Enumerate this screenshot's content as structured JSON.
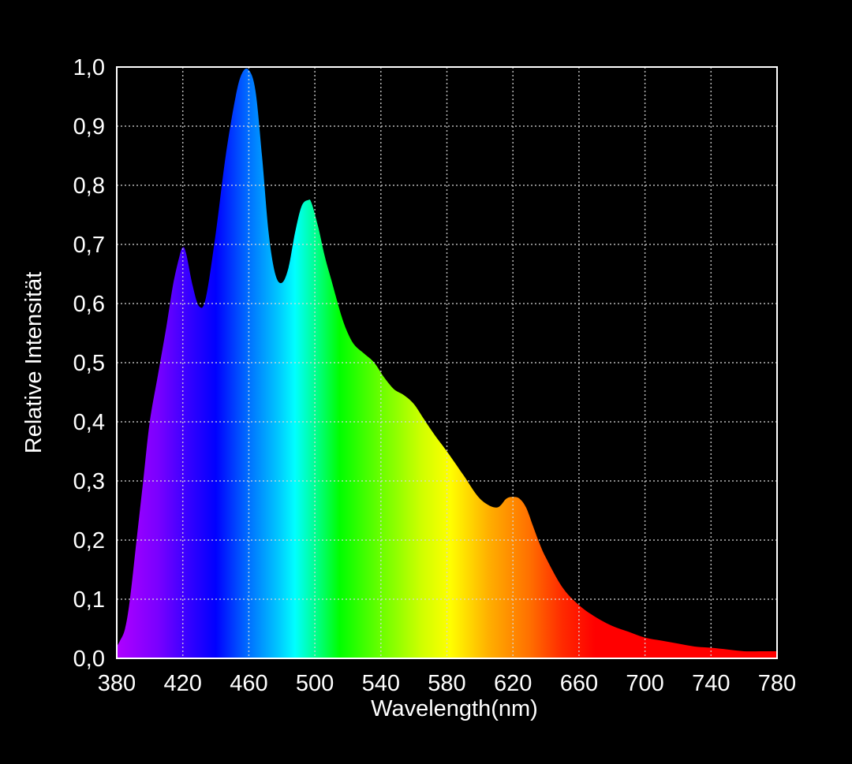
{
  "chart_data": {
    "type": "area",
    "xlabel": "Wavelength(nm)",
    "ylabel": "Relative Intensität",
    "xlim": [
      380,
      780
    ],
    "ylim": [
      0,
      1
    ],
    "xticks": [
      "380",
      "420",
      "460",
      "500",
      "540",
      "580",
      "620",
      "660",
      "700",
      "740",
      "780"
    ],
    "yticks": [
      "0,0",
      "0,1",
      "0,2",
      "0,3",
      "0,4",
      "0,5",
      "0,6",
      "0,7",
      "0,8",
      "0,9",
      "1,0"
    ],
    "grid": true,
    "fill": "visible spectrum gradient",
    "series": [
      {
        "x": [
          380,
          382,
          385,
          388,
          392,
          396,
          400,
          405,
          410,
          414,
          418,
          420,
          422,
          426,
          430,
          434,
          440,
          446,
          452,
          456,
          460,
          464,
          468,
          472,
          476,
          480,
          484,
          488,
          492,
          496,
          498,
          502,
          506,
          510,
          516,
          520,
          524,
          530,
          536,
          542,
          548,
          554,
          560,
          566,
          572,
          580,
          590,
          600,
          610,
          616,
          620,
          624,
          628,
          632,
          636,
          640,
          650,
          660,
          670,
          680,
          690,
          700,
          710,
          720,
          730,
          740,
          750,
          760,
          770,
          780
        ],
        "values": [
          0.02,
          0.03,
          0.05,
          0.1,
          0.2,
          0.3,
          0.4,
          0.48,
          0.56,
          0.63,
          0.68,
          0.695,
          0.685,
          0.63,
          0.595,
          0.61,
          0.72,
          0.85,
          0.95,
          0.99,
          0.995,
          0.96,
          0.85,
          0.72,
          0.65,
          0.635,
          0.66,
          0.72,
          0.765,
          0.775,
          0.77,
          0.73,
          0.68,
          0.64,
          0.58,
          0.55,
          0.53,
          0.515,
          0.5,
          0.475,
          0.455,
          0.445,
          0.43,
          0.405,
          0.38,
          0.35,
          0.31,
          0.27,
          0.255,
          0.27,
          0.273,
          0.27,
          0.255,
          0.225,
          0.195,
          0.17,
          0.12,
          0.09,
          0.07,
          0.055,
          0.045,
          0.035,
          0.03,
          0.025,
          0.02,
          0.018,
          0.015,
          0.012,
          0.012,
          0.012
        ]
      }
    ]
  }
}
